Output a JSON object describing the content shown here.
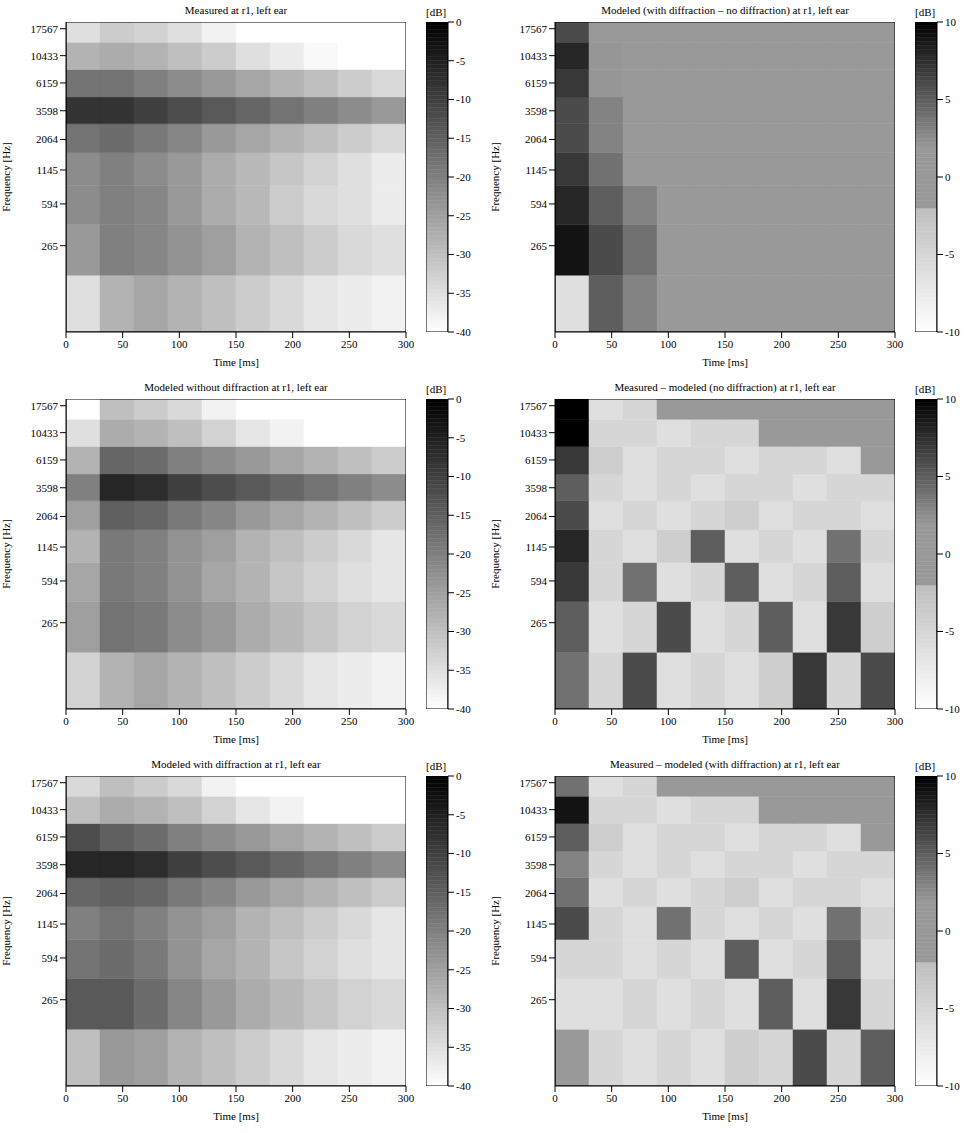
{
  "chart_data": [
    {
      "type": "heatmap",
      "title": "Measured at r1, left ear",
      "xlabel": "Time [ms]",
      "ylabel": "Frequency [Hz]",
      "log": "y",
      "xlim": [
        0,
        300
      ],
      "xticks": [
        0,
        50,
        100,
        150,
        200,
        250,
        300
      ],
      "ylim": [
        50,
        20000
      ],
      "yticks": [
        265,
        594,
        1145,
        2064,
        3598,
        6159,
        10433,
        17567
      ],
      "x_edges": [
        0,
        30,
        60,
        90,
        120,
        150,
        180,
        210,
        240,
        270,
        300
      ],
      "y_edges": [
        50,
        150,
        400,
        850,
        1600,
        2800,
        4700,
        8000,
        13500,
        20000
      ],
      "cells": [
        [
          -35,
          -28,
          -26,
          -28,
          -30,
          -32,
          -34,
          -36,
          -37,
          -38
        ],
        [
          -24,
          -20,
          -21,
          -23,
          -25,
          -28,
          -30,
          -32,
          -34,
          -35
        ],
        [
          -22,
          -20,
          -21,
          -24,
          -27,
          -29,
          -32,
          -34,
          -35,
          -37
        ],
        [
          -22,
          -20,
          -22,
          -24,
          -27,
          -29,
          -31,
          -33,
          -35,
          -37
        ],
        [
          -18,
          -17,
          -19,
          -21,
          -24,
          -26,
          -28,
          -30,
          -32,
          -34
        ],
        [
          -8,
          -8,
          -10,
          -12,
          -14,
          -16,
          -18,
          -20,
          -22,
          -24
        ],
        [
          -18,
          -18,
          -20,
          -22,
          -24,
          -26,
          -28,
          -30,
          -32,
          -34
        ],
        [
          -28,
          -27,
          -28,
          -30,
          -32,
          -35,
          -37,
          -39,
          -40,
          -40
        ],
        [
          -35,
          -32,
          -33,
          -35,
          -38,
          -40,
          -40,
          -40,
          -40,
          -40
        ]
      ],
      "colorbar": {
        "label": "[dB]",
        "range": [
          -40,
          0
        ],
        "ticks": [
          -40,
          -35,
          -30,
          -25,
          -20,
          -15,
          -10,
          -5,
          0
        ]
      }
    },
    {
      "type": "heatmap",
      "title": "Modeled (with diffraction – no diffraction) at r1, left ear",
      "xlabel": "Time [ms]",
      "ylabel": "Frequency [Hz]",
      "log": "y",
      "xlim": [
        0,
        300
      ],
      "xticks": [
        0,
        50,
        100,
        150,
        200,
        250,
        300
      ],
      "ylim": [
        50,
        20000
      ],
      "yticks": [
        265,
        594,
        1145,
        2064,
        3598,
        6159,
        10433,
        17567
      ],
      "x_edges": [
        0,
        30,
        60,
        90,
        120,
        150,
        180,
        210,
        240,
        270,
        300
      ],
      "y_edges": [
        50,
        150,
        400,
        850,
        1600,
        2800,
        4700,
        8000,
        13500,
        20000
      ],
      "cells": [
        [
          -6,
          5,
          3,
          0,
          0,
          0,
          0,
          0,
          0,
          0
        ],
        [
          9,
          6,
          4,
          1,
          0,
          0,
          0,
          0,
          0,
          0
        ],
        [
          8,
          5,
          3,
          0,
          0,
          0,
          0,
          0,
          0,
          0
        ],
        [
          7,
          4,
          1,
          0,
          0,
          0,
          0,
          0,
          0,
          0
        ],
        [
          6,
          3,
          1,
          0,
          0,
          0,
          0,
          0,
          0,
          0
        ],
        [
          6,
          3,
          0,
          0,
          0,
          0,
          0,
          0,
          0,
          0
        ],
        [
          7,
          2,
          0,
          0,
          0,
          0,
          0,
          0,
          0,
          0
        ],
        [
          8,
          2,
          0,
          0,
          0,
          0,
          0,
          0,
          0,
          0
        ],
        [
          6,
          0,
          0,
          0,
          0,
          0,
          0,
          0,
          0,
          0
        ]
      ],
      "colorbar": {
        "label": "[dB]",
        "range": [
          -10,
          10
        ],
        "ticks": [
          -10,
          -5,
          0,
          5,
          10
        ]
      }
    },
    {
      "type": "heatmap",
      "title": "Modeled without diffraction at r1, left ear",
      "xlabel": "Time [ms]",
      "ylabel": "Frequency [Hz]",
      "log": "y",
      "xlim": [
        0,
        300
      ],
      "xticks": [
        0,
        50,
        100,
        150,
        200,
        250,
        300
      ],
      "ylim": [
        50,
        20000
      ],
      "yticks": [
        265,
        594,
        1145,
        2064,
        3598,
        6159,
        10433,
        17567
      ],
      "x_edges": [
        0,
        30,
        60,
        90,
        120,
        150,
        180,
        210,
        240,
        270,
        300
      ],
      "y_edges": [
        50,
        150,
        400,
        850,
        1600,
        2800,
        4700,
        8000,
        13500,
        20000
      ],
      "cells": [
        [
          -33,
          -28,
          -26,
          -28,
          -30,
          -32,
          -34,
          -36,
          -37,
          -38
        ],
        [
          -25,
          -18,
          -19,
          -22,
          -24,
          -27,
          -29,
          -31,
          -33,
          -34
        ],
        [
          -26,
          -19,
          -20,
          -23,
          -26,
          -28,
          -31,
          -33,
          -35,
          -36
        ],
        [
          -28,
          -19,
          -20,
          -23,
          -25,
          -28,
          -30,
          -32,
          -34,
          -36
        ],
        [
          -25,
          -15,
          -16,
          -19,
          -21,
          -24,
          -26,
          -28,
          -30,
          -32
        ],
        [
          -20,
          -6,
          -7,
          -10,
          -12,
          -14,
          -16,
          -18,
          -20,
          -22
        ],
        [
          -28,
          -16,
          -17,
          -20,
          -22,
          -24,
          -26,
          -28,
          -30,
          -32
        ],
        [
          -35,
          -27,
          -28,
          -30,
          -33,
          -36,
          -38,
          -40,
          -40,
          -40
        ],
        [
          -40,
          -30,
          -32,
          -34,
          -38,
          -40,
          -40,
          -40,
          -40,
          -40
        ]
      ],
      "colorbar": {
        "label": "[dB]",
        "range": [
          -40,
          0
        ],
        "ticks": [
          -40,
          -35,
          -30,
          -25,
          -20,
          -15,
          -10,
          -5,
          0
        ]
      }
    },
    {
      "type": "heatmap",
      "title": "Measured – modeled (no diffraction) at r1, left ear",
      "xlabel": "Time [ms]",
      "ylabel": "Frequency [Hz]",
      "log": "y",
      "xlim": [
        0,
        300
      ],
      "xticks": [
        0,
        50,
        100,
        150,
        200,
        250,
        300
      ],
      "ylim": [
        50,
        20000
      ],
      "yticks": [
        265,
        594,
        1145,
        2064,
        3598,
        6159,
        10433,
        17567
      ],
      "x_edges": [
        0,
        30,
        60,
        90,
        120,
        150,
        180,
        210,
        240,
        270,
        300
      ],
      "y_edges": [
        50,
        150,
        400,
        850,
        1600,
        2800,
        4700,
        8000,
        13500,
        20000
      ],
      "cells": [
        [
          4,
          -5,
          6,
          -6,
          -5,
          -6,
          -4,
          7,
          -5,
          6
        ],
        [
          5,
          -6,
          -5,
          6,
          -6,
          -5,
          5,
          -6,
          7,
          -4
        ],
        [
          7,
          -5,
          4,
          -6,
          -5,
          5,
          -6,
          -5,
          5,
          -6
        ],
        [
          8,
          -5,
          -6,
          -4,
          5,
          -6,
          -5,
          -6,
          4,
          -5
        ],
        [
          6,
          -6,
          -5,
          -6,
          -5,
          -4,
          -6,
          -5,
          -5,
          -6
        ],
        [
          5,
          -5,
          -6,
          -5,
          -6,
          -5,
          -5,
          -6,
          -5,
          -5
        ],
        [
          7,
          -4,
          -6,
          -5,
          -5,
          -6,
          -5,
          -5,
          -6,
          0
        ],
        [
          10,
          -5,
          -5,
          -6,
          -5,
          -5,
          0,
          0,
          0,
          0
        ],
        [
          10,
          -6,
          -5,
          0,
          0,
          0,
          0,
          0,
          0,
          0
        ]
      ],
      "colorbar": {
        "label": "[dB]",
        "range": [
          -10,
          10
        ],
        "ticks": [
          -10,
          -5,
          0,
          5,
          10
        ]
      }
    },
    {
      "type": "heatmap",
      "title": "Modeled with diffraction at r1, left ear",
      "xlabel": "Time [ms]",
      "ylabel": "Frequency [Hz]",
      "log": "y",
      "xlim": [
        0,
        300
      ],
      "xticks": [
        0,
        50,
        100,
        150,
        200,
        250,
        300
      ],
      "ylim": [
        50,
        20000
      ],
      "yticks": [
        265,
        594,
        1145,
        2064,
        3598,
        6159,
        10433,
        17567
      ],
      "x_edges": [
        0,
        30,
        60,
        90,
        120,
        150,
        180,
        210,
        240,
        270,
        300
      ],
      "y_edges": [
        50,
        150,
        400,
        850,
        1600,
        2800,
        4700,
        8000,
        13500,
        20000
      ],
      "cells": [
        [
          -30,
          -24,
          -25,
          -28,
          -30,
          -32,
          -34,
          -36,
          -37,
          -38
        ],
        [
          -14,
          -14,
          -17,
          -21,
          -24,
          -27,
          -29,
          -31,
          -33,
          -34
        ],
        [
          -18,
          -17,
          -19,
          -23,
          -26,
          -28,
          -31,
          -33,
          -35,
          -36
        ],
        [
          -20,
          -18,
          -20,
          -23,
          -25,
          -28,
          -30,
          -32,
          -34,
          -36
        ],
        [
          -16,
          -15,
          -16,
          -19,
          -21,
          -24,
          -26,
          -28,
          -30,
          -32
        ],
        [
          -6,
          -6,
          -7,
          -10,
          -12,
          -14,
          -16,
          -18,
          -20,
          -22
        ],
        [
          -12,
          -15,
          -17,
          -20,
          -22,
          -24,
          -26,
          -28,
          -30,
          -32
        ],
        [
          -30,
          -27,
          -28,
          -30,
          -33,
          -36,
          -38,
          -40,
          -40,
          -40
        ],
        [
          -34,
          -30,
          -32,
          -34,
          -38,
          -40,
          -40,
          -40,
          -40,
          -40
        ]
      ],
      "colorbar": {
        "label": "[dB]",
        "range": [
          -40,
          0
        ],
        "ticks": [
          -40,
          -35,
          -30,
          -25,
          -20,
          -15,
          -10,
          -5,
          0
        ]
      }
    },
    {
      "type": "heatmap",
      "title": "Measured – modeled (with diffraction) at r1, left ear",
      "xlabel": "Time [ms]",
      "ylabel": "Frequency [Hz]",
      "log": "y",
      "xlim": [
        0,
        300
      ],
      "xticks": [
        0,
        50,
        100,
        150,
        200,
        250,
        300
      ],
      "ylim": [
        50,
        20000
      ],
      "yticks": [
        265,
        594,
        1145,
        2064,
        3598,
        6159,
        10433,
        17567
      ],
      "x_edges": [
        0,
        30,
        60,
        90,
        120,
        150,
        180,
        210,
        240,
        270,
        300
      ],
      "y_edges": [
        50,
        150,
        400,
        850,
        1600,
        2800,
        4700,
        8000,
        13500,
        20000
      ],
      "cells": [
        [
          0,
          -5,
          -6,
          -5,
          -6,
          -4,
          -5,
          6,
          -5,
          5
        ],
        [
          -6,
          -6,
          -5,
          -6,
          -5,
          -6,
          5,
          -6,
          7,
          -5
        ],
        [
          -5,
          -5,
          -6,
          -5,
          -6,
          5,
          -6,
          -5,
          5,
          -6
        ],
        [
          6,
          -5,
          -6,
          4,
          -5,
          -6,
          -5,
          -6,
          4,
          -5
        ],
        [
          4,
          -6,
          -5,
          -6,
          -5,
          -4,
          -6,
          -5,
          -5,
          -6
        ],
        [
          3,
          -5,
          -6,
          -5,
          -6,
          -5,
          -5,
          -6,
          -5,
          -5
        ],
        [
          5,
          -4,
          -6,
          -5,
          -5,
          -6,
          -5,
          -5,
          -6,
          0
        ],
        [
          9,
          -5,
          -5,
          -6,
          -5,
          -5,
          0,
          0,
          0,
          0
        ],
        [
          4,
          -6,
          -5,
          0,
          0,
          0,
          0,
          0,
          0,
          0
        ]
      ],
      "colorbar": {
        "label": "[dB]",
        "range": [
          -10,
          10
        ],
        "ticks": [
          -10,
          -5,
          0,
          5,
          10
        ]
      }
    }
  ]
}
